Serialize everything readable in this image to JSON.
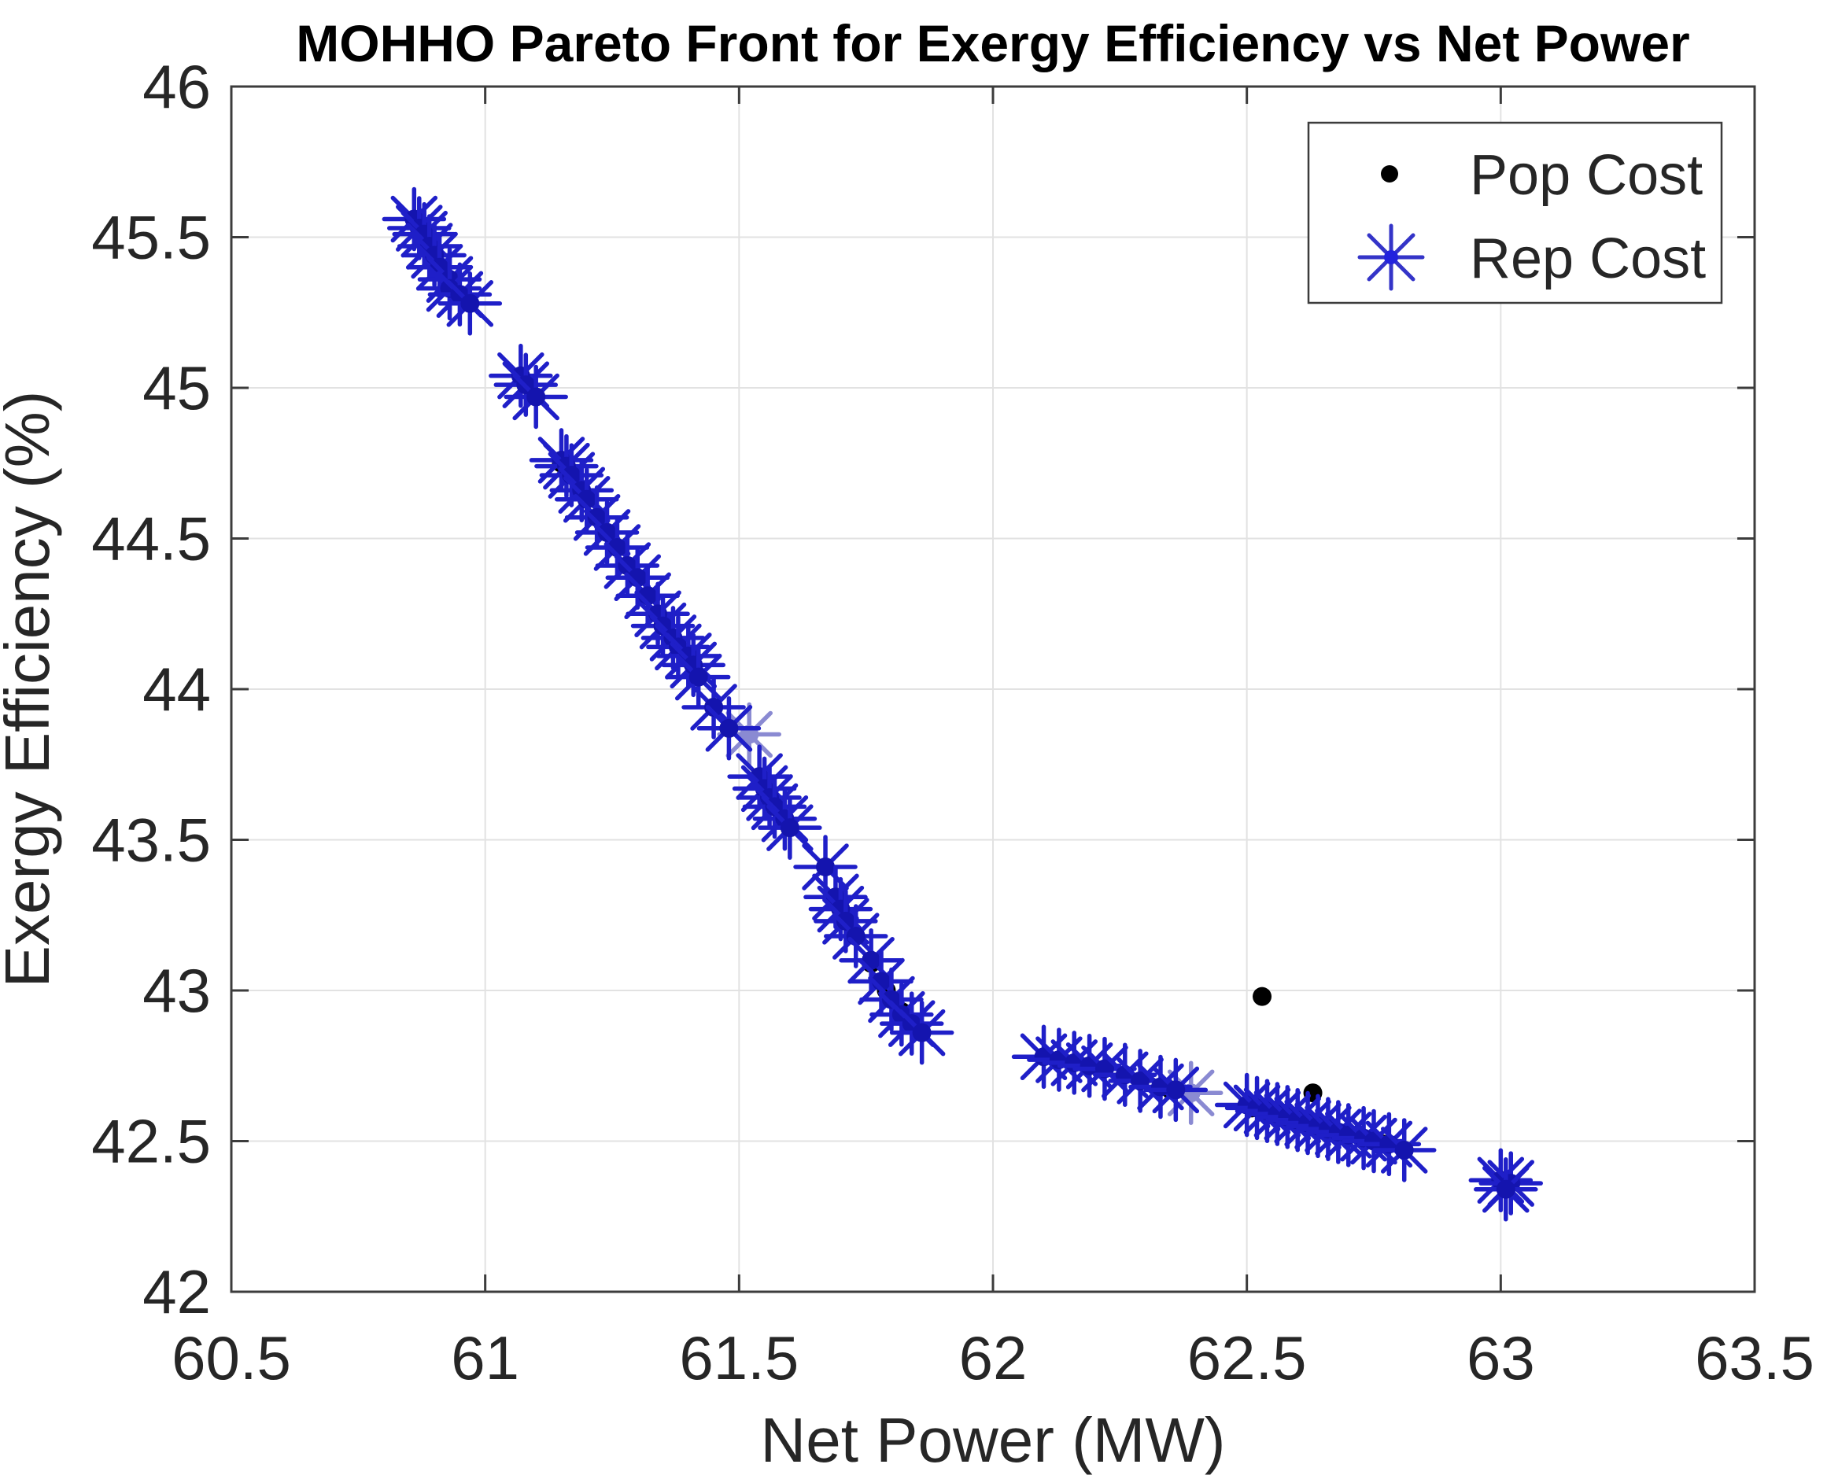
{
  "figure": {
    "title": "MOHHO Pareto Front for Exergy Efficiency vs Net Power",
    "xlabel": "Net Power (MW)",
    "ylabel": "Exergy Efficiency (%)"
  },
  "legend": {
    "items": [
      {
        "label": "Pop Cost",
        "marker": "dot-icon",
        "color": "#000000"
      },
      {
        "label": "Rep Cost",
        "marker": "asterisk-icon",
        "color": "#2a2ac8"
      }
    ]
  },
  "colors": {
    "rep_marker": "#1f1fc8",
    "rep_marker_light": "#8a8ad2",
    "rep_center": "#1414ae",
    "pop_marker": "#000000",
    "grid": "#e2e2e2",
    "spine": "#3c3c3c",
    "tick_text": "#262626"
  },
  "chart_data": {
    "type": "scatter",
    "title": "MOHHO Pareto Front for Exergy Efficiency vs Net Power",
    "xlabel": "Net Power (MW)",
    "ylabel": "Exergy Efficiency (%)",
    "xlim": [
      60.5,
      63.5
    ],
    "ylim": [
      42,
      46
    ],
    "xticks": [
      60.5,
      61,
      61.5,
      62,
      62.5,
      63,
      63.5
    ],
    "xtick_labels": [
      "60.5",
      "61",
      "61.5",
      "62",
      "62.5",
      "63",
      "63.5"
    ],
    "yticks": [
      42,
      42.5,
      43,
      43.5,
      44,
      44.5,
      45,
      45.5,
      46
    ],
    "ytick_labels": [
      "42",
      "42.5",
      "43",
      "43.5",
      "44",
      "44.5",
      "45",
      "45.5",
      "46"
    ],
    "grid": true,
    "legend_position": "top-right",
    "series": [
      {
        "name": "Pop Cost",
        "marker": "dot",
        "color": "#000000",
        "points": [
          [
            60.93,
            45.34
          ],
          [
            61.15,
            44.75
          ],
          [
            61.2,
            44.63
          ],
          [
            61.24,
            44.52
          ],
          [
            61.28,
            44.41
          ],
          [
            61.32,
            44.31
          ],
          [
            61.35,
            44.21
          ],
          [
            61.4,
            44.1
          ],
          [
            61.45,
            43.94
          ],
          [
            61.48,
            43.87
          ],
          [
            61.57,
            43.62
          ],
          [
            61.6,
            43.54
          ],
          [
            61.7,
            43.27
          ],
          [
            61.76,
            43.09
          ],
          [
            61.79,
            43.0
          ],
          [
            61.82,
            42.93
          ],
          [
            62.35,
            42.67
          ],
          [
            62.51,
            42.61
          ],
          [
            62.56,
            42.59
          ],
          [
            62.63,
            42.55
          ],
          [
            62.7,
            42.52
          ],
          [
            62.77,
            42.49
          ],
          [
            63.01,
            42.36
          ],
          [
            62.53,
            42.98
          ],
          [
            62.63,
            42.66
          ]
        ]
      },
      {
        "name": "Rep Cost",
        "marker": "asterisk",
        "color": "#1f1fc8",
        "points": [
          [
            60.86,
            45.56
          ],
          [
            60.87,
            45.53
          ],
          [
            60.88,
            45.51
          ],
          [
            60.89,
            45.47
          ],
          [
            60.9,
            45.44
          ],
          [
            60.91,
            45.4
          ],
          [
            60.93,
            45.36
          ],
          [
            60.93,
            45.33
          ],
          [
            60.95,
            45.31
          ],
          [
            60.97,
            45.28
          ],
          [
            61.07,
            45.04
          ],
          [
            61.08,
            45.01
          ],
          [
            61.1,
            44.97
          ],
          [
            61.15,
            44.76
          ],
          [
            61.16,
            44.74
          ],
          [
            61.17,
            44.71
          ],
          [
            61.19,
            44.66
          ],
          [
            61.2,
            44.63
          ],
          [
            61.22,
            44.57
          ],
          [
            61.24,
            44.52
          ],
          [
            61.26,
            44.47
          ],
          [
            61.28,
            44.41
          ],
          [
            61.3,
            44.37
          ],
          [
            61.32,
            44.31
          ],
          [
            61.34,
            44.25
          ],
          [
            61.35,
            44.21
          ],
          [
            61.37,
            44.17
          ],
          [
            61.38,
            44.14
          ],
          [
            61.4,
            44.11
          ],
          [
            61.41,
            44.08
          ],
          [
            61.42,
            44.04
          ],
          [
            61.45,
            43.94
          ],
          [
            61.48,
            43.87
          ],
          [
            61.54,
            43.71
          ],
          [
            61.55,
            43.67
          ],
          [
            61.56,
            43.64
          ],
          [
            61.57,
            43.61
          ],
          [
            61.59,
            43.57
          ],
          [
            61.6,
            43.54
          ],
          [
            61.67,
            43.41
          ],
          [
            61.69,
            43.31
          ],
          [
            61.7,
            43.27
          ],
          [
            61.71,
            43.23
          ],
          [
            61.73,
            43.18
          ],
          [
            61.76,
            43.1
          ],
          [
            61.78,
            43.03
          ],
          [
            61.8,
            42.97
          ],
          [
            61.82,
            42.92
          ],
          [
            61.84,
            42.89
          ],
          [
            61.86,
            42.86
          ],
          [
            62.1,
            42.78
          ],
          [
            62.13,
            42.77
          ],
          [
            62.16,
            42.76
          ],
          [
            62.19,
            42.75
          ],
          [
            62.22,
            42.74
          ],
          [
            62.26,
            42.72
          ],
          [
            62.29,
            42.7
          ],
          [
            62.33,
            42.68
          ],
          [
            62.36,
            42.67
          ],
          [
            62.5,
            42.62
          ],
          [
            62.52,
            42.61
          ],
          [
            62.54,
            42.6
          ],
          [
            62.56,
            42.59
          ],
          [
            62.58,
            42.58
          ],
          [
            62.6,
            42.57
          ],
          [
            62.62,
            42.56
          ],
          [
            62.64,
            42.55
          ],
          [
            62.66,
            42.54
          ],
          [
            62.68,
            42.53
          ],
          [
            62.7,
            42.52
          ],
          [
            62.73,
            42.51
          ],
          [
            62.75,
            42.5
          ],
          [
            62.78,
            42.49
          ],
          [
            62.81,
            42.47
          ],
          [
            63.0,
            42.37
          ],
          [
            63.02,
            42.36
          ],
          [
            63.01,
            42.34
          ]
        ],
        "points_light": [
          [
            61.52,
            43.85
          ],
          [
            62.39,
            42.66
          ]
        ]
      }
    ]
  }
}
